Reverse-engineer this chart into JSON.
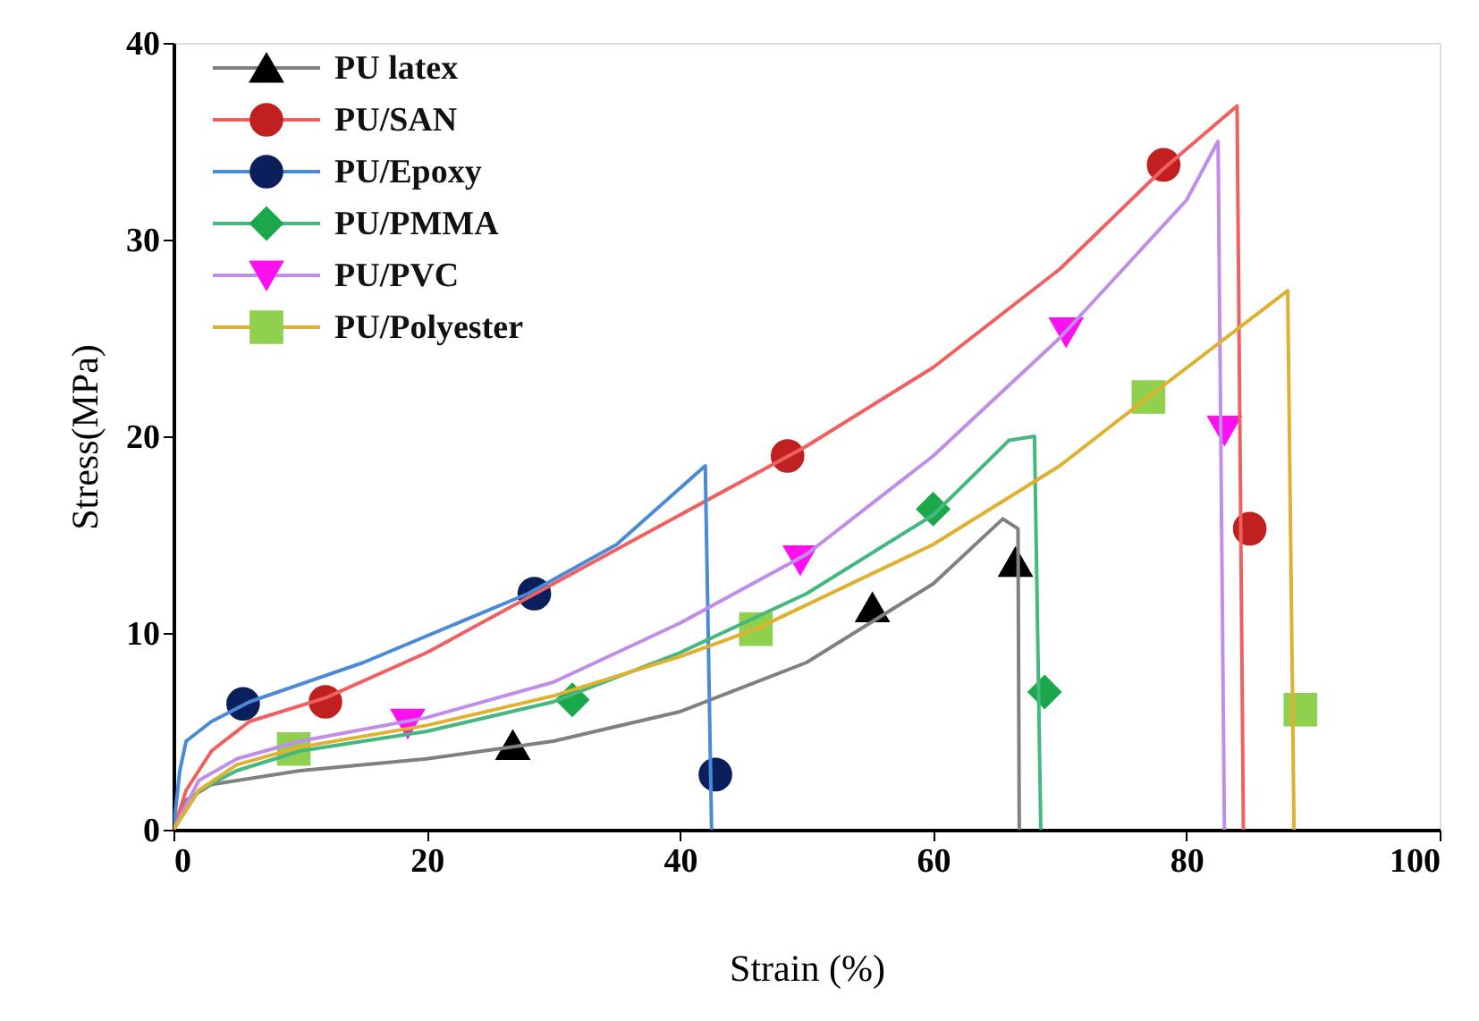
{
  "chart_data": {
    "type": "line",
    "xlabel": "Strain (%)",
    "ylabel": "Stress(MPa)",
    "xlim": [
      0,
      100
    ],
    "ylim": [
      0,
      40
    ],
    "xticks": [
      0,
      20,
      40,
      60,
      80,
      100
    ],
    "yticks": [
      0,
      10,
      20,
      30,
      40
    ],
    "grid": false,
    "legend": "top left",
    "line_style": "solid",
    "series": [
      {
        "color": "#808080",
        "marker": "none",
        "x": [
          0,
          1,
          3,
          10,
          20,
          30,
          40,
          50,
          60,
          65.5,
          66.7,
          66.8
        ],
        "values": [
          0,
          1.5,
          2.3,
          3,
          3.6,
          4.5,
          6,
          8.5,
          12.5,
          15.8,
          15.3,
          0
        ]
      },
      {
        "type": "scatter",
        "name": "PU latex",
        "color": "#000000",
        "marker": "triangle",
        "x": [
          26.8,
          55.2,
          66.5
        ],
        "values": [
          4.3,
          11.3,
          13.6
        ]
      },
      {
        "color": "#f06060",
        "marker": "none",
        "x": [
          0,
          1,
          3,
          6,
          12,
          20,
          30,
          40,
          50,
          60,
          70,
          78,
          84,
          84.5
        ],
        "values": [
          0,
          2,
          4,
          5.5,
          6.7,
          9,
          12.5,
          16,
          19.5,
          23.5,
          28.5,
          33.5,
          36.8,
          0
        ]
      },
      {
        "type": "scatter",
        "name": "PU/SAN",
        "color": "#c02020",
        "marker": "circle",
        "x": [
          12,
          48.5,
          78.2,
          85
        ],
        "values": [
          6.5,
          19,
          33.8,
          15.3
        ]
      },
      {
        "color": "#4a8ad8",
        "marker": "none",
        "x": [
          0,
          0.5,
          1,
          3,
          6,
          15,
          28,
          35,
          42,
          42.5
        ],
        "values": [
          0,
          3,
          4.5,
          5.5,
          6.5,
          8.5,
          12,
          14.5,
          18.5,
          0
        ]
      },
      {
        "type": "scatter",
        "name": "PU/Epoxy",
        "color": "#0a1f5c",
        "marker": "circle",
        "x": [
          5.5,
          28.5,
          42.8
        ],
        "values": [
          6.4,
          12,
          2.8
        ]
      },
      {
        "color": "#45b880",
        "marker": "none",
        "x": [
          0,
          2,
          5,
          10,
          20,
          30,
          40,
          50,
          60,
          66,
          68,
          68.5
        ],
        "values": [
          0,
          2,
          3,
          4,
          5,
          6.5,
          9,
          12,
          16,
          19.8,
          20,
          0
        ]
      },
      {
        "type": "scatter",
        "name": "PU/PMMA",
        "color": "#1aa84a",
        "marker": "diamond",
        "x": [
          31.5,
          60,
          68.8
        ],
        "values": [
          6.6,
          16.3,
          7
        ]
      },
      {
        "color": "#c08ee8",
        "marker": "none",
        "x": [
          0,
          2,
          5,
          10,
          20,
          30,
          40,
          50,
          60,
          70,
          80,
          82.5,
          83
        ],
        "values": [
          0,
          2.5,
          3.6,
          4.5,
          5.7,
          7.5,
          10.5,
          14,
          19,
          25,
          32,
          35,
          0
        ]
      },
      {
        "type": "scatter",
        "name": "PU/PVC",
        "color": "#ff10f0",
        "marker": "triangle-down",
        "x": [
          18.5,
          49.5,
          70.5,
          83
        ],
        "values": [
          5.4,
          13.7,
          25.3,
          20.3
        ]
      },
      {
        "color": "#e0b030",
        "marker": "none",
        "x": [
          0,
          2,
          5,
          10,
          20,
          30,
          40,
          46,
          60,
          70,
          77,
          88,
          88.5
        ],
        "values": [
          0,
          2,
          3.3,
          4.2,
          5.3,
          6.8,
          8.8,
          10.2,
          14.5,
          18.5,
          22,
          27.4,
          0
        ]
      },
      {
        "type": "scatter",
        "name": "PU/Polyester",
        "color": "#8fd14f",
        "marker": "square",
        "x": [
          9.5,
          46,
          77,
          89
        ],
        "values": [
          4.1,
          10.2,
          22,
          6.1
        ]
      }
    ]
  }
}
